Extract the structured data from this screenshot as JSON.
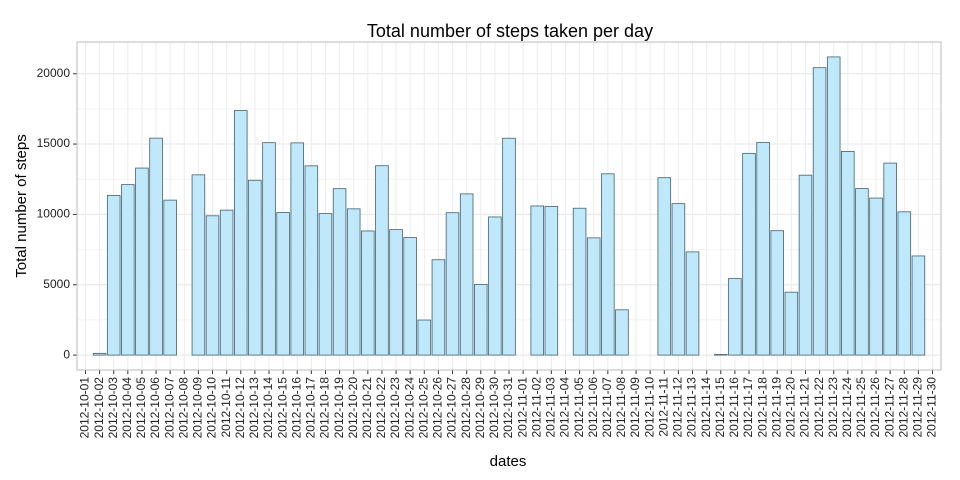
{
  "chart_data": {
    "type": "bar",
    "title": "Total number of steps taken per day",
    "x_label": "dates",
    "y_label": "Total number of steps",
    "categories": [
      "2012-10-01",
      "2012-10-02",
      "2012-10-03",
      "2012-10-04",
      "2012-10-05",
      "2012-10-06",
      "2012-10-07",
      "2012-10-08",
      "2012-10-09",
      "2012-10-10",
      "2012-10-11",
      "2012-10-12",
      "2012-10-13",
      "2012-10-14",
      "2012-10-15",
      "2012-10-16",
      "2012-10-17",
      "2012-10-18",
      "2012-10-19",
      "2012-10-20",
      "2012-10-21",
      "2012-10-22",
      "2012-10-23",
      "2012-10-24",
      "2012-10-25",
      "2012-10-26",
      "2012-10-27",
      "2012-10-28",
      "2012-10-29",
      "2012-10-30",
      "2012-10-31",
      "2012-11-01",
      "2012-11-02",
      "2012-11-03",
      "2012-11-04",
      "2012-11-05",
      "2012-11-06",
      "2012-11-07",
      "2012-11-08",
      "2012-11-09",
      "2012-11-10",
      "2012-11-11",
      "2012-11-12",
      "2012-11-13",
      "2012-11-14",
      "2012-11-15",
      "2012-11-16",
      "2012-11-17",
      "2012-11-18",
      "2012-11-19",
      "2012-11-20",
      "2012-11-21",
      "2012-11-22",
      "2012-11-23",
      "2012-11-24",
      "2012-11-25",
      "2012-11-26",
      "2012-11-27",
      "2012-11-28",
      "2012-11-29",
      "2012-11-30"
    ],
    "values": [
      null,
      126,
      11352,
      12116,
      13294,
      15420,
      11015,
      null,
      12811,
      9900,
      10304,
      17382,
      12426,
      15098,
      10139,
      15084,
      13452,
      10056,
      11829,
      10395,
      8821,
      13460,
      8918,
      8355,
      2492,
      6778,
      10119,
      11458,
      5018,
      9819,
      15414,
      null,
      10600,
      10571,
      null,
      10439,
      8334,
      12883,
      3219,
      null,
      null,
      12608,
      10765,
      7336,
      null,
      41,
      5441,
      14339,
      15110,
      8841,
      4472,
      12787,
      20427,
      21194,
      14478,
      11834,
      11162,
      13646,
      10183,
      7047,
      null
    ],
    "color": "#bfe9fa",
    "edge_color": "#44606e",
    "ylim": [
      -1060,
      22254
    ],
    "yticks": [
      0,
      5000,
      10000,
      15000,
      20000
    ],
    "grid": true
  }
}
